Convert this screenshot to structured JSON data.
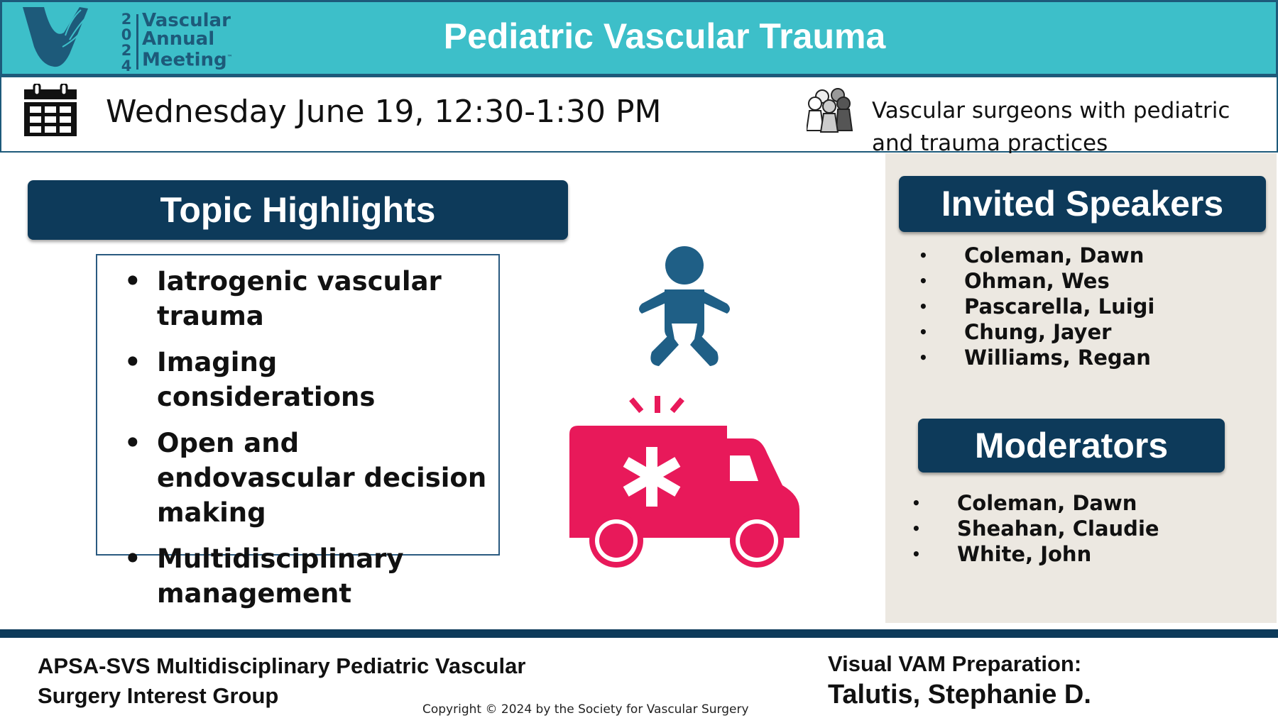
{
  "header": {
    "title": "Pediatric Vascular Trauma",
    "logo": {
      "year_digits": [
        "2",
        "0",
        "2",
        "4"
      ],
      "lines": [
        "Vascular",
        "Annual",
        "Meeting"
      ],
      "tm": "™"
    },
    "background_color": "#3dbfc9"
  },
  "info": {
    "date": "Wednesday June 19, 12:30-1:30 PM",
    "date_icon": "calendar-icon",
    "audience": "Vascular surgeons with pediatric and trauma practices",
    "audience_icon": "people-group-icon"
  },
  "topics": {
    "title": "Topic Highlights",
    "items": [
      "Iatrogenic vascular trauma",
      "Imaging considerations",
      "Open and endovascular decision making",
      "Multidisciplinary management"
    ]
  },
  "illustrations": {
    "baby_icon": "baby-icon",
    "ambulance_icon": "ambulance-icon",
    "baby_color": "#1f5f86",
    "ambulance_color": "#e8195a"
  },
  "speakers": {
    "title": "Invited Speakers",
    "bullet": "•",
    "items": [
      "Coleman, Dawn",
      "Ohman, Wes",
      "Pascarella, Luigi",
      "Chung, Jayer",
      "Williams, Regan"
    ]
  },
  "moderators": {
    "title": "Moderators",
    "items": [
      "Coleman, Dawn",
      "Sheahan, Claudie",
      "White, John"
    ]
  },
  "footer": {
    "group": "APSA-SVS Multidisciplinary Pediatric Vascular Surgery Interest Group",
    "copyright": "Copyright © 2024 by the Society for Vascular Surgery",
    "prep_label": "Visual VAM Preparation:",
    "prep_name": "Talutis, Stephanie D."
  },
  "colors": {
    "navy": "#0d3a5a",
    "panel": "#ece8e1"
  }
}
